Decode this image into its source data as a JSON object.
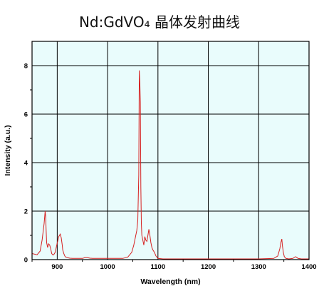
{
  "chart_data": {
    "type": "line",
    "title": "Nd:GdVO₄ 晶体发射曲线",
    "xlabel": "Wavelength (nm)",
    "ylabel": "Intensity (a.u.)",
    "xlim": [
      850,
      1400
    ],
    "ylim": [
      0,
      9
    ],
    "xticks": [
      900,
      1000,
      1100,
      1200,
      1300,
      1400
    ],
    "xtick_labels": [
      "900",
      "1000",
      "1100",
      "1200",
      "1300",
      "1400"
    ],
    "yticks": [
      0,
      2,
      4,
      6,
      8
    ],
    "ytick_labels": [
      "0",
      "2",
      "4",
      "6",
      "8"
    ],
    "grid": true,
    "plot_background": "#e9fcfc",
    "line_color": "#d62020",
    "series": [
      {
        "x": [
          850,
          860,
          866,
          870,
          874,
          876,
          877,
          878,
          879,
          881,
          883,
          885,
          887,
          889,
          891,
          893,
          896,
          899,
          903,
          906,
          908,
          910,
          911,
          913,
          915,
          917,
          920,
          925,
          930,
          940,
          950,
          955,
          960,
          965,
          970,
          1000,
          1030,
          1040,
          1048,
          1052,
          1055,
          1058,
          1060,
          1062,
          1063,
          1064,
          1065,
          1066,
          1067,
          1068,
          1070,
          1072,
          1074,
          1076,
          1078,
          1080,
          1082,
          1084,
          1086,
          1088,
          1090,
          1093,
          1096,
          1100,
          1110,
          1200,
          1300,
          1330,
          1338,
          1342,
          1344,
          1346,
          1347,
          1349,
          1351,
          1354,
          1360,
          1368,
          1373,
          1375,
          1378,
          1385,
          1400
        ],
        "y": [
          0.25,
          0.2,
          0.35,
          0.8,
          1.5,
          2.0,
          1.8,
          1.2,
          0.7,
          0.5,
          0.65,
          0.6,
          0.45,
          0.25,
          0.2,
          0.2,
          0.3,
          0.6,
          0.95,
          1.05,
          0.9,
          0.6,
          0.4,
          0.25,
          0.15,
          0.1,
          0.08,
          0.06,
          0.05,
          0.05,
          0.05,
          0.08,
          0.08,
          0.06,
          0.05,
          0.05,
          0.05,
          0.1,
          0.3,
          0.6,
          0.9,
          1.2,
          1.6,
          3.5,
          7.8,
          7.3,
          6.5,
          3.0,
          1.5,
          1.0,
          0.8,
          0.6,
          0.95,
          0.8,
          0.75,
          1.0,
          1.25,
          1.0,
          0.7,
          0.5,
          0.4,
          0.3,
          0.15,
          0.05,
          0.03,
          0.03,
          0.03,
          0.05,
          0.15,
          0.45,
          0.7,
          0.85,
          0.6,
          0.3,
          0.12,
          0.05,
          0.03,
          0.05,
          0.12,
          0.1,
          0.05,
          0.03,
          0.03
        ]
      }
    ]
  }
}
